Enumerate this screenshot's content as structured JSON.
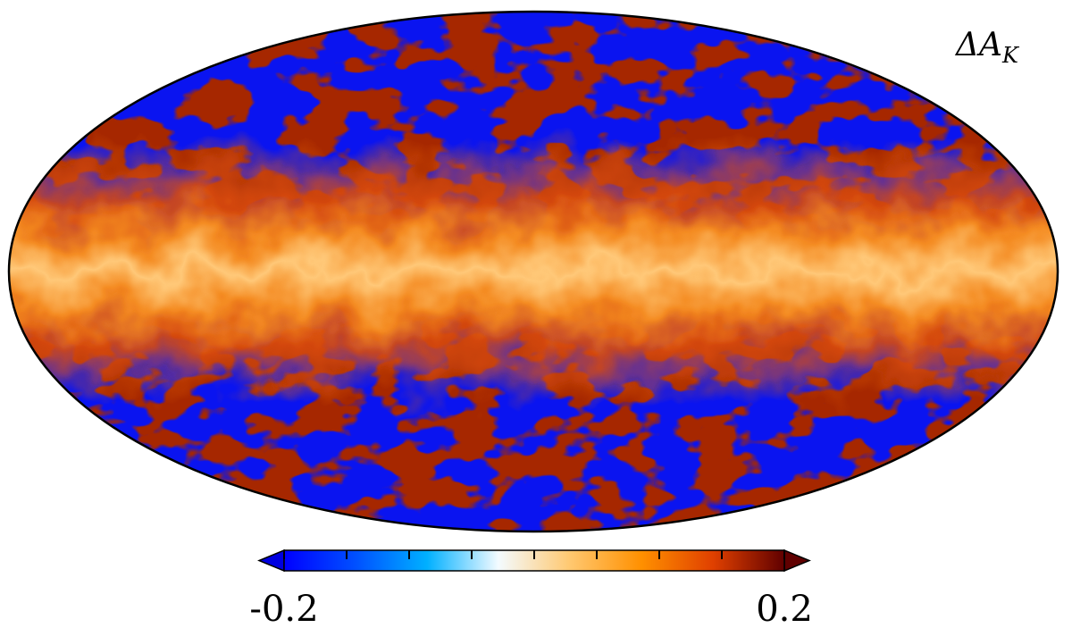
{
  "map": {
    "label": "ΔA",
    "label_subscript": "K",
    "colorbar": {
      "range": [
        -0.2,
        0.2
      ],
      "ticks": [
        -0.2,
        0.2
      ],
      "minor_ticks": [
        -0.15,
        -0.1,
        -0.05,
        0,
        0.05,
        0.1,
        0.15
      ],
      "colors": [
        "#0000ff",
        "#0050ff",
        "#00b0ff",
        "#f4fbff",
        "#ffc870",
        "#ff9000",
        "#e04000",
        "#600000"
      ],
      "under_color": "#0000e0",
      "over_color": "#600000"
    }
  }
}
